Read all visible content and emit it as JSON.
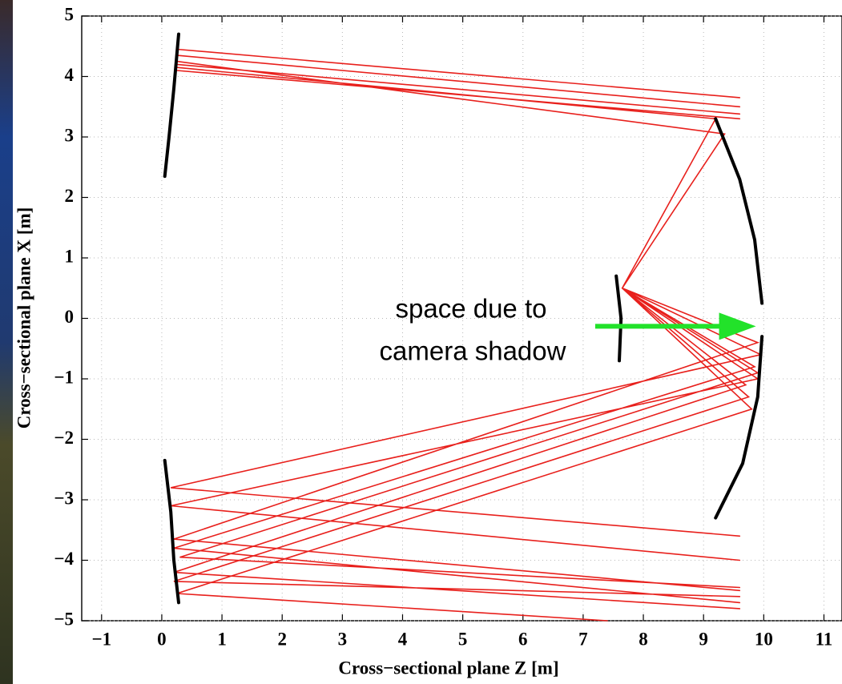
{
  "chart_data": {
    "type": "line",
    "xlabel": "Cross−sectional plane Z [m]",
    "ylabel": "Cross−sectional plane X [m]",
    "xlim": [
      -1.33,
      11.3
    ],
    "ylim": [
      -5,
      5
    ],
    "xticks": [
      {
        "value": -1,
        "label": "−1"
      },
      0,
      1,
      2,
      3,
      4,
      5,
      6,
      7,
      8,
      9,
      10,
      11
    ],
    "yticks": [
      {
        "value": -5,
        "label": "−5"
      },
      {
        "value": -4,
        "label": "−4"
      },
      {
        "value": -3,
        "label": "−3"
      },
      {
        "value": -2,
        "label": "−2"
      },
      {
        "value": -1,
        "label": "−1"
      },
      0,
      1,
      2,
      3,
      4,
      5
    ],
    "grid": true,
    "series": [
      {
        "color": "#000000",
        "x": [
          0.05,
          0.12,
          0.2,
          0.28,
          null,
          0.05,
          0.15,
          0.2,
          0.28,
          null,
          9.2,
          9.6,
          9.85,
          9.97,
          null,
          9.97,
          9.9,
          9.65,
          9.2,
          null,
          7.55,
          7.63,
          7.6
        ],
        "values": [
          2.35,
          3.0,
          3.8,
          4.7,
          null,
          -2.35,
          -3.2,
          -4.0,
          -4.7,
          null,
          3.3,
          2.3,
          1.3,
          0.25,
          null,
          -0.3,
          -1.3,
          -2.4,
          -3.3,
          null,
          0.7,
          0.0,
          -0.7
        ]
      },
      {
        "color": "#e8201c",
        "x": [
          0.25,
          9.6,
          null,
          0.25,
          9.6,
          null,
          0.25,
          9.6,
          null,
          0.25,
          9.6,
          null,
          0.25,
          9.2,
          7.65,
          9.9,
          0.2,
          9.6,
          null,
          0.25,
          9.35,
          7.65,
          9.8,
          0.25,
          7.4,
          null,
          7.65,
          9.85,
          0.2,
          9.6,
          null,
          7.65,
          9.7,
          0.2,
          9.6,
          null,
          7.65,
          9.95,
          0.15,
          9.6,
          null,
          7.65,
          9.9,
          0.15,
          9.6,
          null,
          7.65,
          9.75,
          0.2,
          9.6,
          null,
          7.65,
          9.9,
          0.3,
          9.6
        ],
        "values": [
          4.45,
          3.65,
          null,
          4.35,
          3.5,
          null,
          4.2,
          3.38,
          null,
          4.1,
          3.3,
          null,
          4.15,
          3.3,
          0.5,
          -0.4,
          -3.65,
          -4.5,
          null,
          4.25,
          3.05,
          0.5,
          -1.5,
          -4.55,
          -5.0,
          null,
          0.5,
          -0.8,
          -3.8,
          -4.7,
          null,
          0.5,
          -1.1,
          -4.2,
          -4.8,
          null,
          0.5,
          -0.6,
          -2.8,
          -3.6,
          null,
          0.5,
          -1.0,
          -3.1,
          -4.0,
          null,
          0.5,
          -1.3,
          -4.35,
          -4.6,
          null,
          0.5,
          -0.9,
          -3.95,
          -4.45
        ]
      }
    ],
    "annotation": {
      "lines": [
        "space due to",
        "camera shadow"
      ],
      "arrow": {
        "x": [
          7.2,
          9.87
        ],
        "y": [
          -0.13,
          -0.13
        ],
        "color": "#22e22a"
      }
    }
  }
}
